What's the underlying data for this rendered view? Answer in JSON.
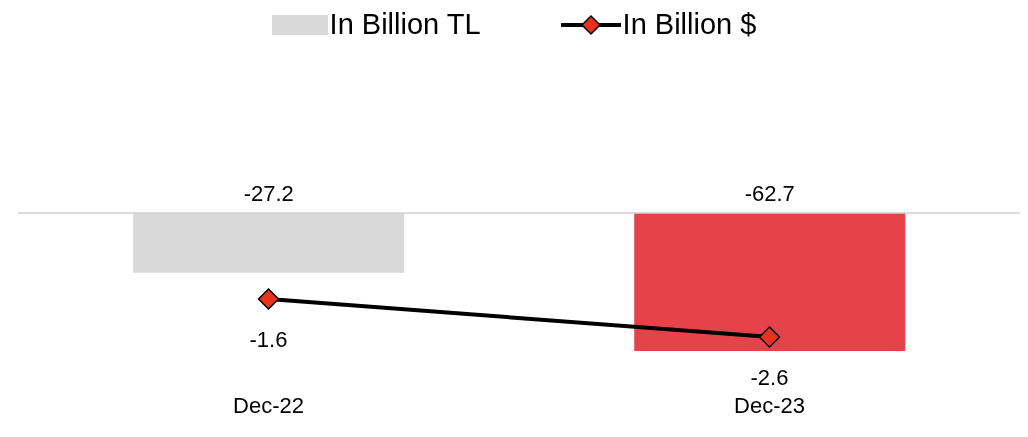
{
  "chart_data": {
    "type": "bar",
    "categories": [
      "Dec-22",
      "Dec-23"
    ],
    "series": [
      {
        "name": "In Billion TL",
        "color": "#d9d9d9",
        "colors": [
          "#d9d9d9",
          "#e5424a"
        ],
        "values": [
          -27.2,
          -62.7
        ]
      },
      {
        "name": "In Billion $",
        "type": "line",
        "axis": "y2",
        "color": "#000000",
        "values": [
          -1.6,
          -2.6
        ]
      }
    ],
    "data_labels": true,
    "legend": "top",
    "marker": "diamond"
  }
}
